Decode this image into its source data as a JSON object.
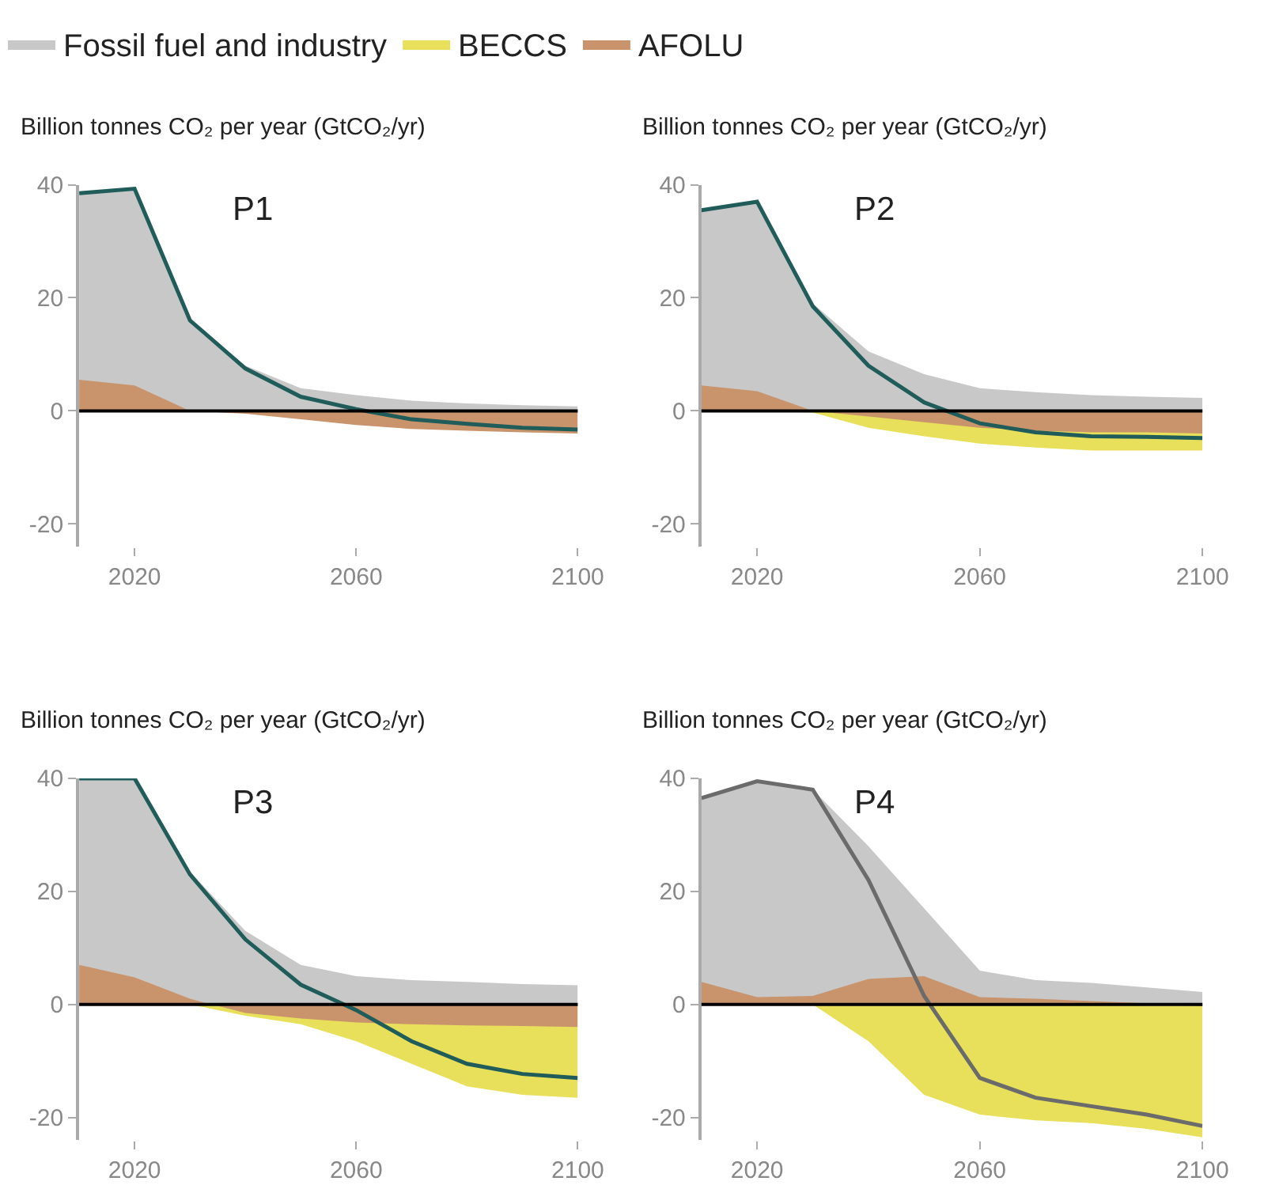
{
  "chart_data": [
    {
      "type": "area",
      "ylabel": "Billion tonnes CO₂ per year (GtCO₂/yr)",
      "annotations": [
        "P1"
      ],
      "x": [
        2010,
        2020,
        2030,
        2040,
        2050,
        2060,
        2070,
        2080,
        2090,
        2100
      ],
      "xlim": [
        2010,
        2100
      ],
      "ylim": [
        -24,
        40
      ],
      "xticks": [
        2020,
        2060,
        2100
      ],
      "yticks": [
        -20,
        0,
        20,
        40
      ],
      "grid": false,
      "ref_lines": [
        {
          "axis": "y",
          "value": 0,
          "label": null,
          "color": "#000000"
        }
      ],
      "series": [
        {
          "color": "#c8c8c8",
          "values": [
            38.5,
            39.3,
            16,
            8,
            4,
            2.8,
            1.8,
            1.3,
            1,
            0.8
          ]
        },
        {
          "color": "#c9946c",
          "values": [
            5.5,
            4.5,
            0,
            -0.5,
            -1.5,
            -2.5,
            -3.2,
            -3.5,
            -3.8,
            -4
          ]
        },
        {
          "type": "line",
          "color": "#1f5c5a",
          "values": [
            38.5,
            39.3,
            16,
            7.5,
            2.5,
            0.3,
            -1.5,
            -2.3,
            -3,
            -3.3
          ]
        }
      ]
    },
    {
      "type": "area",
      "ylabel": "Billion tonnes CO₂ per year (GtCO₂/yr)",
      "annotations": [
        "P2"
      ],
      "x": [
        2010,
        2020,
        2030,
        2040,
        2050,
        2060,
        2070,
        2080,
        2090,
        2100
      ],
      "xlim": [
        2010,
        2100
      ],
      "ylim": [
        -24,
        40
      ],
      "xticks": [
        2020,
        2060,
        2100
      ],
      "yticks": [
        -20,
        0,
        20,
        40
      ],
      "grid": false,
      "ref_lines": [
        {
          "axis": "y",
          "value": 0,
          "label": null,
          "color": "#000000"
        }
      ],
      "series": [
        {
          "color": "#c8c8c8",
          "values": [
            35.5,
            37,
            19,
            10.5,
            6.5,
            4,
            3.3,
            2.8,
            2.5,
            2.3
          ]
        },
        {
          "color": "#e8e05a",
          "values": [
            0,
            0,
            -0.3,
            -3,
            -4.5,
            -5.8,
            -6.5,
            -7,
            -7,
            -7
          ]
        },
        {
          "color": "#c9946c",
          "values": [
            4.5,
            3.5,
            0,
            -1,
            -2,
            -3,
            -3.5,
            -3.8,
            -3.8,
            -4
          ]
        },
        {
          "type": "line",
          "color": "#1f5c5a",
          "values": [
            35.5,
            37,
            18.5,
            8,
            1.5,
            -2.2,
            -3.8,
            -4.5,
            -4.6,
            -4.8
          ]
        }
      ]
    },
    {
      "type": "area",
      "ylabel": "Billion tonnes CO₂ per year (GtCO₂/yr)",
      "annotations": [
        "P3"
      ],
      "x": [
        2010,
        2020,
        2030,
        2040,
        2050,
        2060,
        2070,
        2080,
        2090,
        2100
      ],
      "xlim": [
        2010,
        2100
      ],
      "ylim": [
        -24,
        40
      ],
      "xticks": [
        2020,
        2060,
        2100
      ],
      "yticks": [
        -20,
        0,
        20,
        40
      ],
      "grid": false,
      "ref_lines": [
        {
          "axis": "y",
          "value": 0,
          "label": null,
          "color": "#000000"
        }
      ],
      "series": [
        {
          "color": "#c8c8c8",
          "values": [
            40,
            40,
            23.5,
            13,
            7,
            5,
            4.3,
            4,
            3.6,
            3.4
          ]
        },
        {
          "color": "#e8e05a",
          "values": [
            0,
            0,
            0,
            -2,
            -3.5,
            -6.5,
            -10.5,
            -14.5,
            -16,
            -16.5
          ]
        },
        {
          "color": "#c9946c",
          "values": [
            7,
            4.8,
            1,
            -1.5,
            -2.5,
            -3.2,
            -3.5,
            -3.7,
            -3.8,
            -4
          ]
        },
        {
          "type": "line",
          "color": "#1f5c5a",
          "values": [
            40,
            40,
            23,
            11.5,
            3.5,
            -1,
            -6.5,
            -10.5,
            -12.3,
            -13
          ]
        }
      ]
    },
    {
      "type": "area",
      "legend": "top",
      "ylabel": "Billion tonnes CO₂ per year (GtCO₂/yr)",
      "annotations": [
        "P4"
      ],
      "x": [
        2010,
        2020,
        2030,
        2040,
        2050,
        2060,
        2070,
        2080,
        2090,
        2100
      ],
      "xlim": [
        2010,
        2100
      ],
      "ylim": [
        -24,
        40
      ],
      "xticks": [
        2020,
        2060,
        2100
      ],
      "yticks": [
        -20,
        0,
        20,
        40
      ],
      "grid": false,
      "ref_lines": [
        {
          "axis": "y",
          "value": 0,
          "label": null,
          "color": "#000000"
        }
      ],
      "series": [
        {
          "name": "Fossil fuel and industry",
          "color": "#c8c8c8",
          "values": [
            36.5,
            39.5,
            38,
            28,
            17,
            6,
            4.3,
            3.8,
            3,
            2.2
          ]
        },
        {
          "name": "BECCS",
          "color": "#e8e05a",
          "values": [
            0,
            0,
            0,
            -6.5,
            -16,
            -19.5,
            -20.5,
            -21,
            -22,
            -23.5
          ]
        },
        {
          "name": "AFOLU",
          "color": "#c9946c",
          "values": [
            4,
            1.3,
            1.5,
            4.5,
            5,
            1.3,
            1,
            0.6,
            0.2,
            -0.3
          ]
        },
        {
          "type": "line",
          "color": "#6b6b6b",
          "values": [
            36.5,
            39.5,
            38,
            22,
            1.5,
            -13,
            -16.5,
            -18,
            -19.5,
            -21.5
          ]
        }
      ]
    }
  ]
}
